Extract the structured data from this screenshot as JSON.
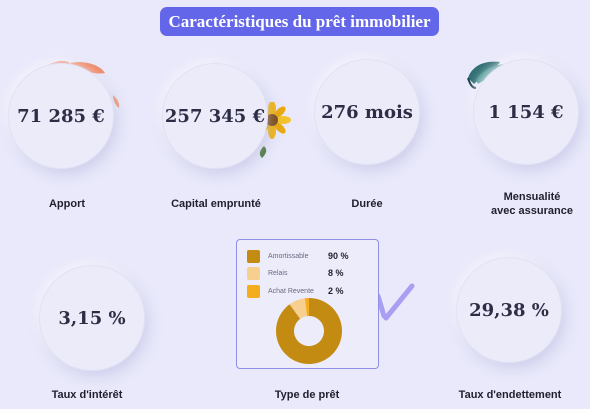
{
  "title": "Caractéristiques du prêt immobilier",
  "stats": {
    "apport": {
      "value": "71 285 €",
      "label": "Apport"
    },
    "capital": {
      "value": "257 345 €",
      "label": "Capital emprunté"
    },
    "duree": {
      "value": "276 mois",
      "label": "Durée"
    },
    "mensualite": {
      "value": "1 154 €",
      "label_line1": "Mensualité",
      "label_line2": "avec assurance"
    },
    "taux": {
      "value": "3,15 %",
      "label": "Taux d'intérêt"
    },
    "type": {
      "label": "Type de prêt"
    },
    "endettement": {
      "value": "29,38 %",
      "label": "Taux d'endettement"
    }
  },
  "chart_data": {
    "type": "pie",
    "donut": true,
    "categories": [
      "Amortissable",
      "Relais",
      "Achat Revente"
    ],
    "values": [
      90,
      8,
      2
    ],
    "value_labels": [
      "90 %",
      "8 %",
      "2 %"
    ],
    "colors": [
      "#c48b12",
      "#f7cf8e",
      "#f3ad1d"
    ],
    "legend_position": "top"
  }
}
